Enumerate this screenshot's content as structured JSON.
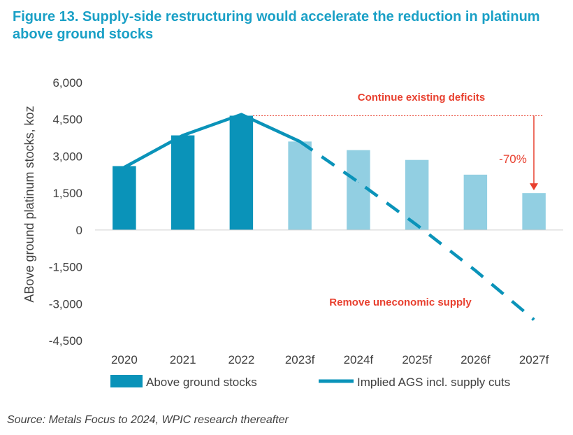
{
  "title": "Figure 13. Supply-side restructuring would accelerate the reduction in platinum above ground stocks",
  "source": "Source: Metals Focus to 2024, WPIC research thereafter",
  "chart_data": {
    "type": "bar",
    "categories": [
      "2020",
      "2021",
      "2022",
      "2023f",
      "2024f",
      "2025f",
      "2026f",
      "2027f"
    ],
    "series": [
      {
        "name": "Above ground stocks",
        "kind": "bar",
        "values": [
          2600,
          3850,
          4650,
          3600,
          3250,
          2850,
          2250,
          1500
        ],
        "colors": [
          "#0a93b9",
          "#0a93b9",
          "#0a93b9",
          "#92cfe2",
          "#92cfe2",
          "#92cfe2",
          "#92cfe2",
          "#92cfe2"
        ]
      },
      {
        "name": "Implied AGS incl. supply cuts",
        "kind": "line",
        "values": [
          2550,
          3850,
          4700,
          3600,
          1950,
          200,
          -1650,
          -3650
        ],
        "color": "#0a93b9",
        "solid_until_index": 3
      }
    ],
    "ylabel": "ABove ground platinum stocks, koz",
    "xlabel": "",
    "ylim": [
      -4500,
      6000
    ],
    "yticks": [
      -4500,
      -3000,
      -1500,
      0,
      1500,
      3000,
      4500,
      6000
    ],
    "ytick_labels": [
      "-4,500",
      "-3,000",
      "-1,500",
      "0",
      "1,500",
      "3,000",
      "4,500",
      "6,000"
    ],
    "grid": false,
    "legend": "bottom",
    "annotations": {
      "deficits": "Continue existing deficits",
      "uneconomic": "Remove uneconomic supply",
      "pct": "-70%",
      "ref_value": 4650,
      "arrow_to_value": 1500
    }
  }
}
